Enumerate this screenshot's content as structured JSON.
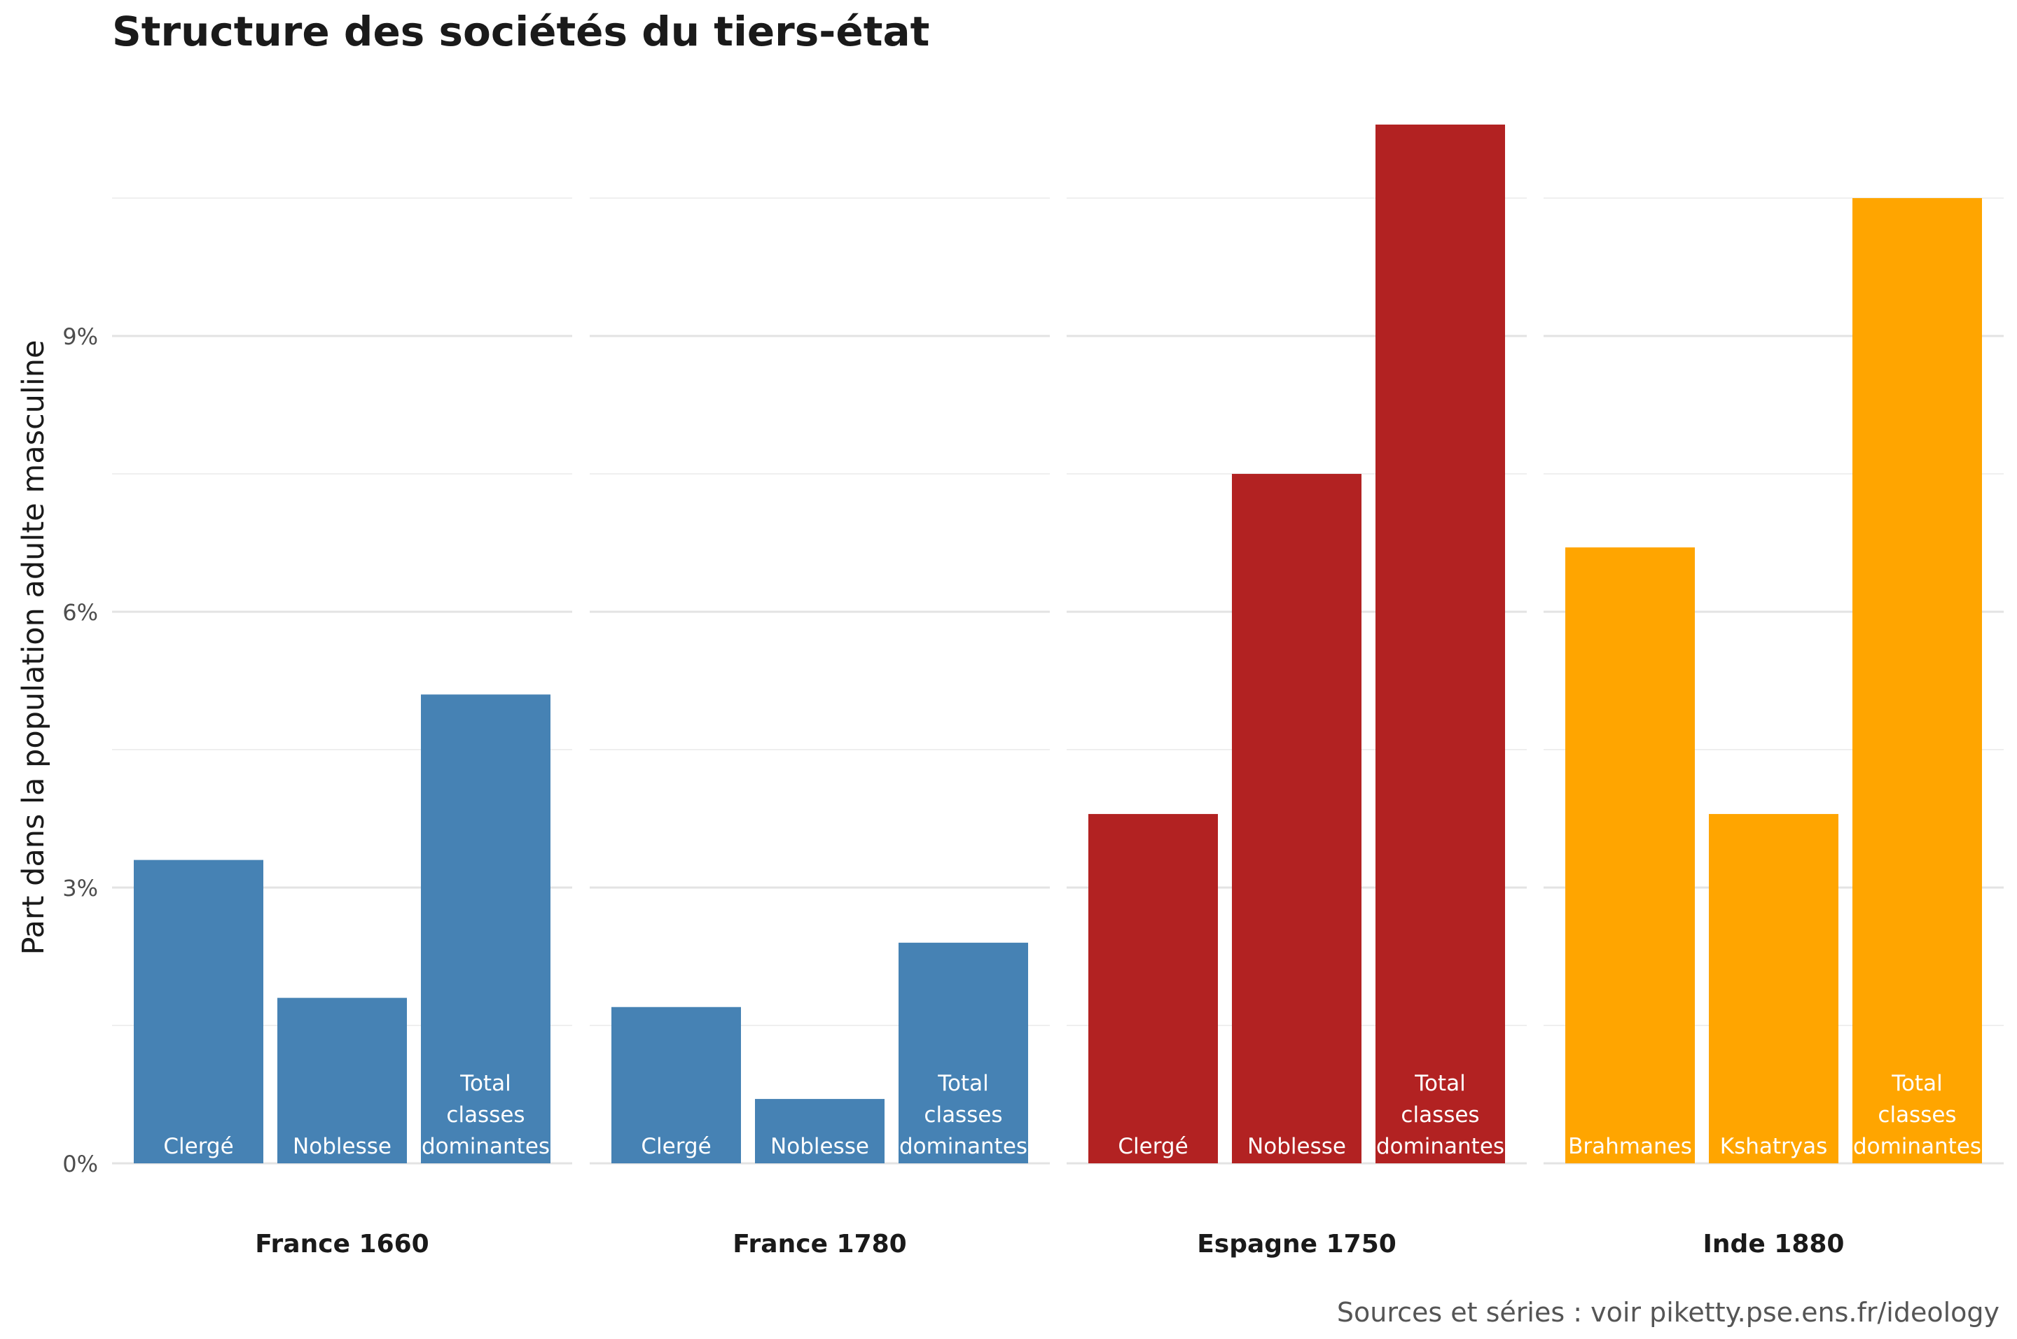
{
  "chart_data": {
    "type": "bar",
    "title": "Structure des sociétés du tiers-état",
    "ylabel": "Part dans la population adulte masculine",
    "ylim": [
      0,
      11.5
    ],
    "yticks": [
      0,
      3,
      6,
      9
    ],
    "ytick_labels": [
      "0%",
      "3%",
      "6%",
      "9%"
    ],
    "grid": true,
    "caption": "Sources et séries : voir piketty.pse.ens.fr/ideology",
    "panels": [
      {
        "name": "France 1660",
        "color": "#4682b4",
        "bars": [
          {
            "label": [
              "Clergé"
            ],
            "value": 3.3
          },
          {
            "label": [
              "Noblesse"
            ],
            "value": 1.8
          },
          {
            "label": [
              "Total",
              "classes",
              "dominantes"
            ],
            "value": 5.1
          }
        ]
      },
      {
        "name": "France 1780",
        "color": "#4682b4",
        "bars": [
          {
            "label": [
              "Clergé"
            ],
            "value": 1.7
          },
          {
            "label": [
              "Noblesse"
            ],
            "value": 0.7
          },
          {
            "label": [
              "Total",
              "classes",
              "dominantes"
            ],
            "value": 2.4
          }
        ]
      },
      {
        "name": "Espagne 1750",
        "color": "#b22222",
        "bars": [
          {
            "label": [
              "Clergé"
            ],
            "value": 3.8
          },
          {
            "label": [
              "Noblesse"
            ],
            "value": 7.5
          },
          {
            "label": [
              "Total",
              "classes",
              "dominantes"
            ],
            "value": 11.3
          }
        ]
      },
      {
        "name": "Inde 1880",
        "color": "#ffa500",
        "bars": [
          {
            "label": [
              "Brahmanes"
            ],
            "value": 6.7
          },
          {
            "label": [
              "Kshatryas"
            ],
            "value": 3.8
          },
          {
            "label": [
              "Total",
              "classes",
              "dominantes"
            ],
            "value": 10.5
          }
        ]
      }
    ]
  }
}
